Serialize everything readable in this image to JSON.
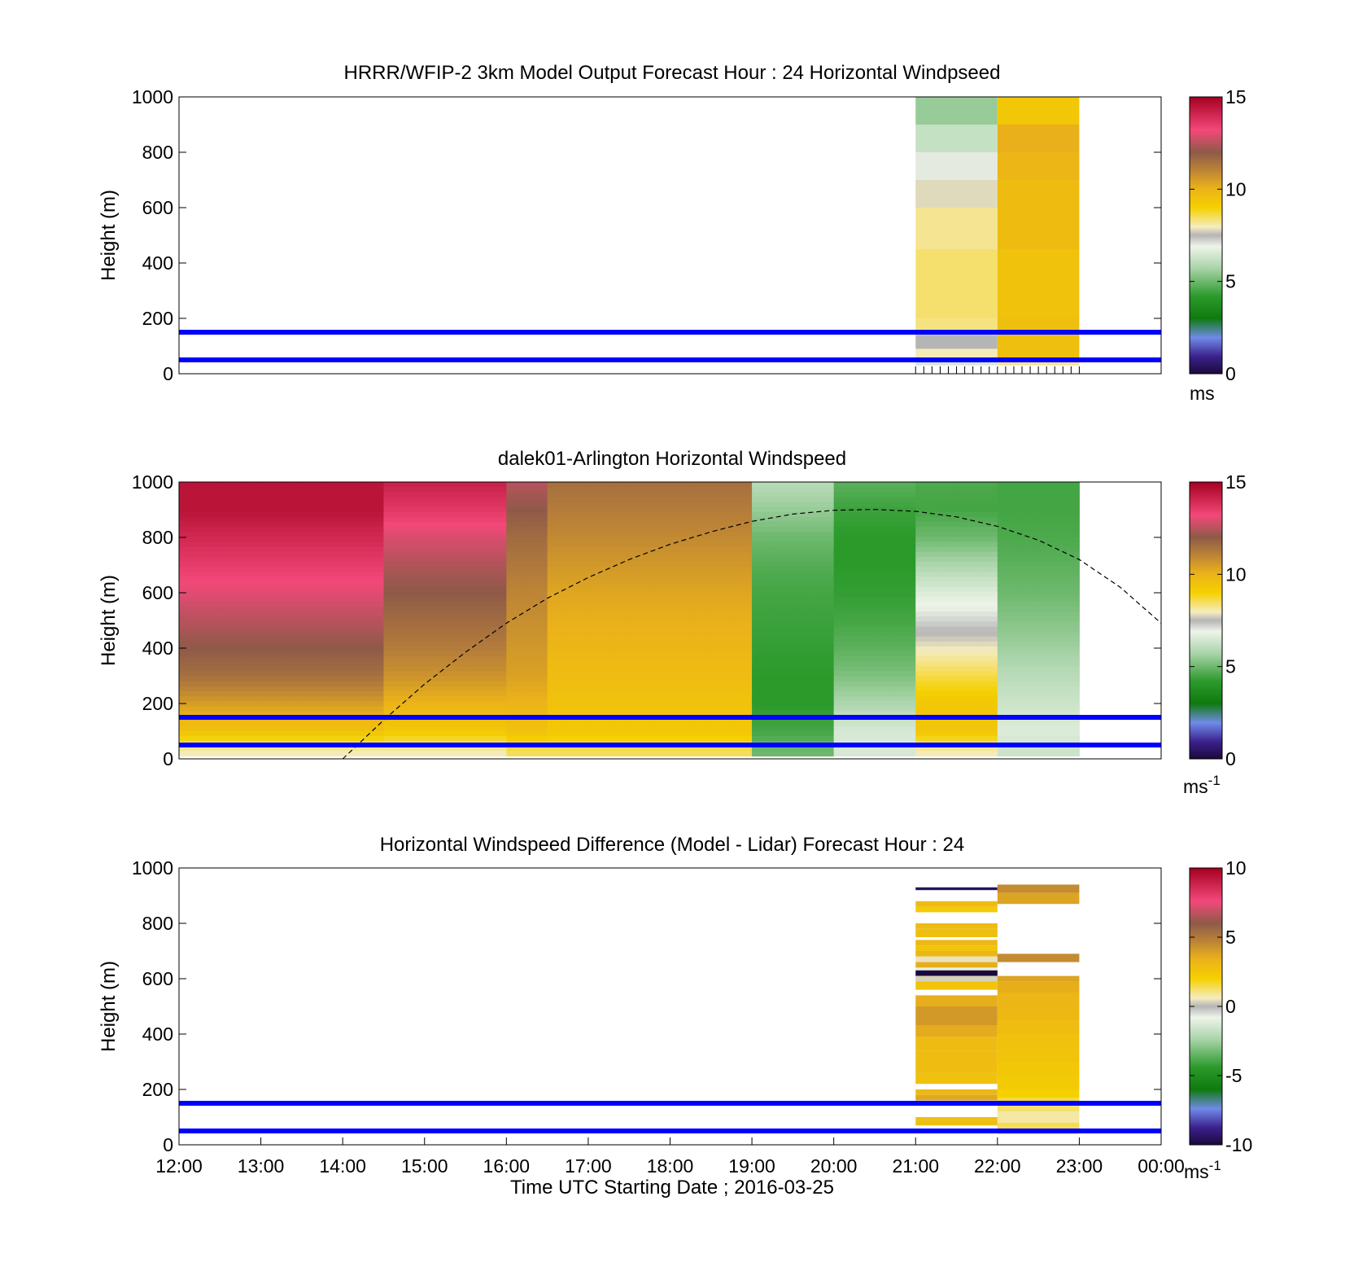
{
  "figure": {
    "xlabel": "Time UTC  Starting Date ; 2016-03-25",
    "x_tick_labels": [
      "12:00",
      "13:00",
      "14:00",
      "15:00",
      "16:00",
      "17:00",
      "18:00",
      "19:00",
      "20:00",
      "21:00",
      "22:00",
      "23:00",
      "00:00"
    ]
  },
  "chart_data": [
    {
      "type": "heatmap",
      "title": "HRRR/WFIP-2 3km Model Output   Forecast Hour : 24 Horizontal Windpseed",
      "ylabel": "Height (m)",
      "colorbar_unit": "ms",
      "x_range_hours": [
        12,
        24
      ],
      "ylim": [
        0,
        1000
      ],
      "y_ticks": [
        0,
        200,
        400,
        600,
        800,
        1000
      ],
      "colorbar_range": [
        0,
        15
      ],
      "colorbar_ticks": [
        0,
        5,
        10,
        15
      ],
      "reference_lines_m": [
        50,
        150
      ],
      "reference_line_color": "#0000ff",
      "profiles": [
        {
          "time_start": 21,
          "time_end": 22,
          "height_bins": [
            [
              30,
              50
            ],
            [
              50,
              90
            ],
            [
              90,
              140
            ],
            [
              140,
              200
            ],
            [
              200,
              450
            ],
            [
              450,
              600
            ],
            [
              600,
              700
            ],
            [
              700,
              800
            ],
            [
              800,
              900
            ],
            [
              900,
              1000
            ]
          ],
          "values": [
            6.5,
            8,
            7.5,
            8.3,
            8.4,
            8.2,
            7.8,
            7,
            6.2,
            5.5
          ]
        },
        {
          "time_start": 22,
          "time_end": 23,
          "height_bins": [
            [
              30,
              50
            ],
            [
              50,
              200
            ],
            [
              200,
              450
            ],
            [
              450,
              700
            ],
            [
              700,
              800
            ],
            [
              800,
              900
            ],
            [
              900,
              1000
            ]
          ],
          "values": [
            8.2,
            9.6,
            9.5,
            9.7,
            9.9,
            10.1,
            9.3
          ]
        }
      ]
    },
    {
      "type": "heatmap",
      "title": "dalek01-Arlington  Horizontal Windspeed",
      "ylabel": "Height (m)",
      "colorbar_unit": "ms",
      "colorbar_unit_exponent": "-1",
      "x_range_hours": [
        12,
        24
      ],
      "ylim": [
        0,
        1000
      ],
      "y_ticks": [
        0,
        200,
        400,
        600,
        800,
        1000
      ],
      "colorbar_range": [
        0,
        15
      ],
      "colorbar_ticks": [
        0,
        5,
        10,
        15
      ],
      "reference_lines_m": [
        50,
        150
      ],
      "reference_line_color": "#0000ff",
      "time_start": 12,
      "time_step_hours": 0.25,
      "columns": 44,
      "height_bin_m": 18,
      "profile_top_m": 1000,
      "control_points_top_m": [
        1000,
        900,
        800,
        700,
        600,
        500,
        400,
        300,
        200,
        100,
        30
      ],
      "control_points": [
        [
          14.5,
          14.5,
          14,
          13.5,
          13,
          12.5,
          12,
          11.5,
          10.5,
          9.5,
          8
        ],
        [
          14.5,
          14.5,
          14,
          13.5,
          13,
          12.5,
          12,
          11.5,
          10.5,
          9.5,
          8
        ],
        [
          14.5,
          14.5,
          14,
          13.5,
          13,
          12.5,
          12,
          11.5,
          10.5,
          9.5,
          8
        ],
        [
          14.5,
          14.5,
          14,
          13.5,
          13,
          12.5,
          12,
          11.5,
          10.5,
          9.5,
          8
        ],
        [
          14.5,
          14.5,
          14,
          13.5,
          13,
          12.5,
          12,
          11.5,
          10.5,
          9.5,
          8
        ],
        [
          14.5,
          14.5,
          14,
          13.5,
          13,
          12.5,
          12,
          11.5,
          10.5,
          9.5,
          8
        ],
        [
          14.5,
          14.5,
          14,
          13.5,
          13,
          12.5,
          12,
          11.5,
          10.5,
          9.5,
          8
        ],
        [
          14.5,
          14.5,
          14,
          13.5,
          13,
          12.5,
          12,
          11.5,
          10.5,
          9.5,
          8
        ],
        [
          14.5,
          14.5,
          14,
          13.5,
          13,
          12.5,
          12,
          11.5,
          10.5,
          9.5,
          8
        ],
        [
          14.5,
          14.5,
          14,
          13.5,
          13,
          12.5,
          12,
          11.5,
          10.5,
          9.5,
          8
        ],
        [
          14.2,
          13.6,
          12.9,
          12.4,
          12,
          11.6,
          11.2,
          10.7,
          10,
          9.3,
          8
        ],
        [
          14.2,
          13.6,
          12.9,
          12.4,
          12,
          11.6,
          11.2,
          10.7,
          10,
          9.3,
          8
        ],
        [
          14.2,
          13.6,
          12.9,
          12.4,
          12,
          11.6,
          11.2,
          10.7,
          10,
          9.3,
          8
        ],
        [
          14.2,
          13.6,
          12.9,
          12.4,
          12,
          11.6,
          11.2,
          10.7,
          10,
          9.3,
          8
        ],
        [
          14.2,
          13.6,
          12.9,
          12.4,
          12,
          11.6,
          11.2,
          10.7,
          10,
          9.3,
          8
        ],
        [
          14.2,
          13.6,
          12.9,
          12.4,
          12,
          11.6,
          11.2,
          10.7,
          10,
          9.3,
          8
        ],
        [
          12.5,
          12,
          11.6,
          11.3,
          11,
          10.8,
          10.6,
          10.4,
          10,
          9.5,
          8.5
        ],
        [
          12.5,
          12,
          11.6,
          11.3,
          11,
          10.8,
          10.6,
          10.4,
          10,
          9.5,
          8.5
        ],
        [
          11.5,
          11.2,
          10.9,
          10.6,
          10.3,
          10.1,
          9.9,
          9.7,
          9.5,
          9.3,
          8.5
        ],
        [
          11.5,
          11.2,
          10.9,
          10.6,
          10.3,
          10.1,
          9.9,
          9.7,
          9.5,
          9.3,
          8.5
        ],
        [
          11.5,
          11.2,
          10.9,
          10.6,
          10.3,
          10.1,
          9.9,
          9.7,
          9.5,
          9.3,
          8.5
        ],
        [
          11.5,
          11.2,
          10.9,
          10.6,
          10.3,
          10.1,
          9.9,
          9.7,
          9.5,
          9.3,
          8.5
        ],
        [
          11.5,
          11.2,
          10.9,
          10.6,
          10.3,
          10.1,
          9.9,
          9.7,
          9.5,
          9.3,
          8.5
        ],
        [
          11.5,
          11.2,
          10.9,
          10.6,
          10.3,
          10.1,
          9.9,
          9.7,
          9.5,
          9.3,
          8.5
        ],
        [
          11.5,
          11.2,
          10.9,
          10.6,
          10.3,
          10.1,
          9.9,
          9.7,
          9.5,
          9.3,
          8.5
        ],
        [
          11.5,
          11.2,
          10.9,
          10.6,
          10.3,
          10.1,
          9.9,
          9.7,
          9.5,
          9.3,
          8.5
        ],
        [
          11.5,
          11.2,
          10.9,
          10.6,
          10.3,
          10.1,
          9.9,
          9.7,
          9.5,
          9.3,
          8.5
        ],
        [
          11.5,
          11.2,
          10.9,
          10.6,
          10.3,
          10.1,
          9.9,
          9.7,
          9.5,
          9.3,
          8.5
        ],
        [
          6,
          5.5,
          5,
          4.7,
          4.5,
          4.4,
          4.3,
          4.2,
          4.2,
          4.5,
          5
        ],
        [
          6,
          5.5,
          5,
          4.7,
          4.5,
          4.4,
          4.3,
          4.2,
          4.2,
          4.5,
          5
        ],
        [
          6,
          5.5,
          5,
          4.7,
          4.5,
          4.4,
          4.3,
          4.2,
          4.2,
          4.5,
          5
        ],
        [
          6,
          5.5,
          5,
          4.7,
          4.5,
          4.4,
          4.3,
          4.2,
          4.2,
          4.5,
          5
        ],
        [
          4.8,
          4.4,
          4.2,
          4.2,
          4.3,
          4.5,
          4.8,
          5.2,
          5.8,
          6.5,
          6.5
        ],
        [
          4.8,
          4.4,
          4.2,
          4.2,
          4.3,
          4.5,
          4.8,
          5.2,
          5.8,
          6.5,
          6.5
        ],
        [
          4.8,
          4.4,
          4.2,
          4.2,
          4.3,
          4.5,
          4.8,
          5.2,
          5.8,
          6.5,
          6.5
        ],
        [
          4.8,
          4.4,
          4.2,
          4.2,
          4.3,
          4.5,
          4.8,
          5.2,
          5.8,
          6.5,
          6.5
        ],
        [
          4.6,
          4.5,
          5,
          5.8,
          6.6,
          7.2,
          7.9,
          8.6,
          9.3,
          9.4,
          8
        ],
        [
          4.6,
          4.5,
          5,
          5.8,
          6.6,
          7.2,
          7.9,
          8.6,
          9.3,
          9.4,
          8
        ],
        [
          4.6,
          4.5,
          5,
          5.8,
          6.6,
          7.2,
          7.9,
          8.6,
          9.3,
          9.4,
          8
        ],
        [
          4.6,
          4.5,
          5,
          5.8,
          6.6,
          7.2,
          7.9,
          8.6,
          9.3,
          9.4,
          8
        ],
        [
          4.5,
          4.5,
          4.6,
          4.8,
          5,
          5.3,
          5.6,
          6,
          6.3,
          6.6,
          6.3
        ],
        [
          4.5,
          4.5,
          4.6,
          4.8,
          5,
          5.3,
          5.6,
          6,
          6.3,
          6.6,
          6.3
        ],
        [
          4.5,
          4.5,
          4.6,
          4.8,
          5,
          5.3,
          5.6,
          6,
          6.3,
          6.6,
          6.3
        ],
        [
          4.5,
          4.5,
          4.6,
          4.8,
          5,
          5.3,
          5.6,
          6,
          6.3,
          6.6,
          6.3
        ]
      ],
      "dashed_curve": {
        "color": "#000000",
        "x_hours": [
          14.0,
          14.5,
          15.0,
          15.5,
          16.0,
          16.5,
          17.0,
          17.5,
          18.0,
          18.5,
          19.0,
          19.5,
          20.0,
          20.5,
          21.0,
          21.5,
          22.0,
          22.5,
          23.0,
          23.5,
          24.0
        ],
        "y_m": [
          0,
          140,
          270,
          385,
          490,
          580,
          655,
          720,
          775,
          820,
          858,
          884,
          898,
          901,
          894,
          874,
          840,
          790,
          720,
          620,
          490
        ]
      }
    },
    {
      "type": "heatmap",
      "title": "Horizontal Windspeed Difference (Model - Lidar) Forecast Hour : 24",
      "ylabel": "Height (m)",
      "colorbar_unit": "ms",
      "colorbar_unit_exponent": "-1",
      "x_range_hours": [
        12,
        24
      ],
      "ylim": [
        0,
        1000
      ],
      "y_ticks": [
        0,
        200,
        400,
        600,
        800,
        1000
      ],
      "colorbar_range": [
        -10,
        10
      ],
      "colorbar_ticks": [
        -10,
        -5,
        0,
        5,
        10
      ],
      "reference_lines_m": [
        50,
        150
      ],
      "reference_line_color": "#0000ff",
      "profiles": [
        {
          "time_start": 21,
          "time_end": 22,
          "cells": [
            [
              920,
              930,
              -9.5
            ],
            [
              860,
              880,
              3
            ],
            [
              840,
              860,
              2.3
            ],
            [
              780,
              800,
              3
            ],
            [
              750,
              780,
              2.8
            ],
            [
              720,
              740,
              3.1
            ],
            [
              700,
              720,
              2.6
            ],
            [
              680,
              700,
              3.2
            ],
            [
              660,
              680,
              0.5
            ],
            [
              640,
              660,
              3.5
            ],
            [
              630,
              640,
              -1
            ],
            [
              610,
              630,
              -10.5
            ],
            [
              590,
              610,
              0.3
            ],
            [
              560,
              590,
              2.6
            ],
            [
              500,
              540,
              3.5
            ],
            [
              430,
              500,
              4.1
            ],
            [
              390,
              430,
              3.6
            ],
            [
              340,
              390,
              3
            ],
            [
              260,
              340,
              2.9
            ],
            [
              220,
              260,
              2.7
            ],
            [
              180,
              200,
              3.1
            ],
            [
              160,
              180,
              3.7
            ],
            [
              90,
              100,
              2.9
            ],
            [
              70,
              90,
              2.8
            ]
          ]
        },
        {
          "time_start": 22,
          "time_end": 23,
          "cells": [
            [
              910,
              940,
              4.5
            ],
            [
              870,
              910,
              3.8
            ],
            [
              660,
              690,
              4.5
            ],
            [
              590,
              610,
              3.8
            ],
            [
              550,
              590,
              3.5
            ],
            [
              500,
              550,
              3.2
            ],
            [
              450,
              500,
              3.1
            ],
            [
              400,
              450,
              2.9
            ],
            [
              350,
              400,
              2.7
            ],
            [
              300,
              350,
              2.6
            ],
            [
              250,
              300,
              2.4
            ],
            [
              200,
              250,
              2.3
            ],
            [
              170,
              200,
              2
            ],
            [
              140,
              170,
              1.6
            ],
            [
              120,
              140,
              1.2
            ],
            [
              80,
              120,
              0.8
            ],
            [
              60,
              80,
              1.4
            ],
            [
              40,
              60,
              1.8
            ]
          ]
        }
      ]
    }
  ]
}
